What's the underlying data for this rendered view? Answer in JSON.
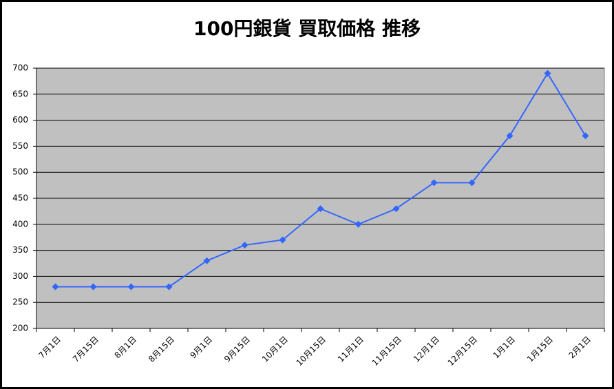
{
  "chart_data": {
    "type": "line",
    "title": "100円銀貨 買取価格 推移",
    "categories": [
      "7月1日",
      "7月15日",
      "8月1日",
      "8月15日",
      "9月1日",
      "9月15日",
      "10月1日",
      "10月15日",
      "11月1日",
      "11月15日",
      "12月1日",
      "12月15日",
      "1月1日",
      "1月15日",
      "2月1日"
    ],
    "values": [
      280,
      280,
      280,
      280,
      330,
      360,
      370,
      430,
      400,
      430,
      480,
      480,
      570,
      690,
      570
    ],
    "color": "#3366ff",
    "ylim": [
      200,
      700
    ],
    "yticks": [
      200,
      250,
      300,
      350,
      400,
      450,
      500,
      550,
      600,
      650,
      700
    ],
    "grid": true
  }
}
